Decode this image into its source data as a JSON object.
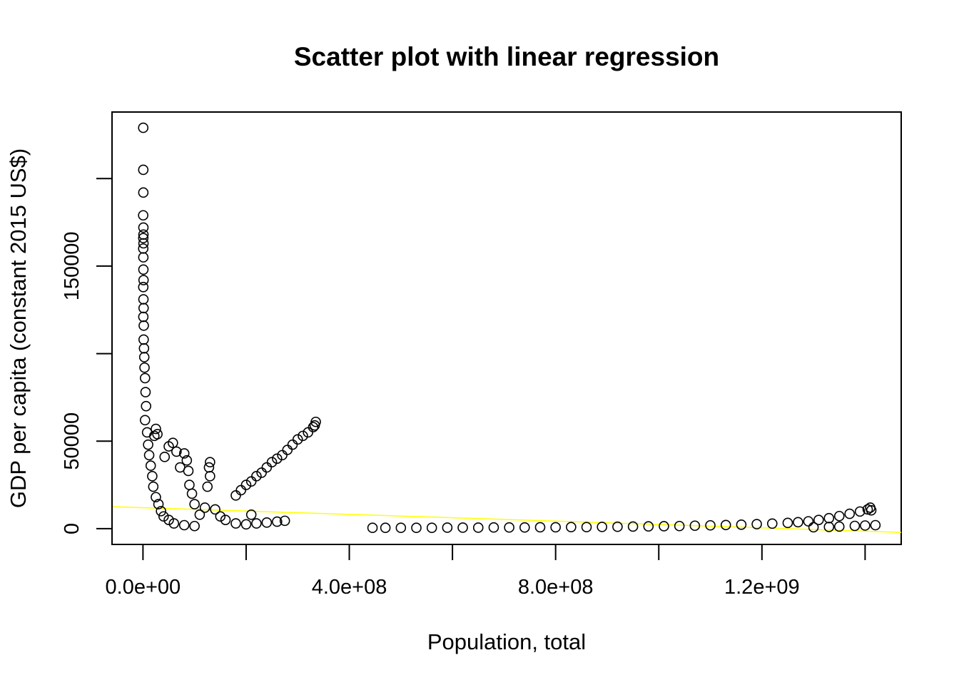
{
  "chart_data": {
    "type": "scatter",
    "title": "Scatter plot with linear regression",
    "xlabel": "Population, total",
    "ylabel": "GDP per capita (constant 2015 US$)",
    "xlim": [
      -60000000,
      1470000000
    ],
    "ylim": [
      -9000000,
      238000
    ],
    "y_display_min": -9000,
    "x_ticks": [
      0,
      200000000,
      400000000,
      600000000,
      800000000,
      1000000000,
      1200000000,
      1400000000
    ],
    "x_tick_labels": [
      {
        "value": 0,
        "label": "0.0e+00"
      },
      {
        "value": 400000000,
        "label": "4.0e+08"
      },
      {
        "value": 800000000,
        "label": "8.0e+08"
      },
      {
        "value": 1200000000,
        "label": "1.2e+09"
      }
    ],
    "y_ticks": [
      0,
      50000,
      100000,
      150000,
      200000
    ],
    "y_tick_labels": [
      {
        "value": 0,
        "label": "0"
      },
      {
        "value": 50000,
        "label": "50000"
      },
      {
        "value": 150000,
        "label": "150000"
      }
    ],
    "regression_line": {
      "color": "#ffff00",
      "intercept": 12000,
      "slope": -9.6e-06
    },
    "point_style": {
      "marker": "open-circle",
      "color": "#000000"
    },
    "series": [
      {
        "points": [
          [
            500000,
            229000
          ],
          [
            600000,
            205000
          ],
          [
            700000,
            192000
          ],
          [
            400000,
            179000
          ],
          [
            800000,
            172000
          ],
          [
            900000,
            168000
          ],
          [
            600000,
            166000
          ],
          [
            1000000,
            163000
          ],
          [
            500000,
            160000
          ],
          [
            700000,
            155000
          ],
          [
            800000,
            148000
          ],
          [
            1100000,
            142000
          ],
          [
            600000,
            138000
          ],
          [
            900000,
            131000
          ],
          [
            1200000,
            126000
          ],
          [
            700000,
            121000
          ],
          [
            1500000,
            116000
          ],
          [
            1300000,
            108000
          ],
          [
            2000000,
            103000
          ],
          [
            2500000,
            98000
          ],
          [
            3000000,
            92000
          ],
          [
            4000000,
            86000
          ],
          [
            5000000,
            78000
          ],
          [
            6000000,
            70000
          ],
          [
            4000000,
            62000
          ],
          [
            8000000,
            55000
          ],
          [
            10000000,
            48000
          ],
          [
            12000000,
            42000
          ],
          [
            15000000,
            36000
          ],
          [
            18000000,
            30000
          ],
          [
            20000000,
            24000
          ],
          [
            25000000,
            18000
          ],
          [
            30000000,
            14000
          ],
          [
            35000000,
            10000
          ],
          [
            40000000,
            7000
          ],
          [
            50000000,
            5000
          ],
          [
            60000000,
            3000
          ],
          [
            80000000,
            2000
          ],
          [
            100000000,
            1500
          ],
          [
            22000000,
            53000
          ],
          [
            25000000,
            57000
          ],
          [
            28000000,
            54000
          ],
          [
            42000000,
            41000
          ],
          [
            50000000,
            47000
          ],
          [
            58000000,
            49000
          ],
          [
            65000000,
            44000
          ],
          [
            72000000,
            35000
          ],
          [
            80000000,
            43000
          ],
          [
            85000000,
            39000
          ],
          [
            88000000,
            33000
          ],
          [
            90000000,
            25000
          ],
          [
            95000000,
            20000
          ],
          [
            100000000,
            14000
          ],
          [
            110000000,
            8000
          ],
          [
            120000000,
            12000
          ],
          [
            125000000,
            24000
          ],
          [
            130000000,
            30000
          ],
          [
            128000000,
            35000
          ],
          [
            130000000,
            38000
          ],
          [
            140000000,
            11000
          ],
          [
            150000000,
            7000
          ],
          [
            160000000,
            5000
          ],
          [
            180000000,
            3000
          ],
          [
            200000000,
            2500
          ],
          [
            220000000,
            3000
          ],
          [
            240000000,
            3500
          ],
          [
            260000000,
            4000
          ],
          [
            275000000,
            4500
          ],
          [
            210000000,
            8000
          ],
          [
            180000000,
            19000
          ],
          [
            190000000,
            22000
          ],
          [
            200000000,
            25000
          ],
          [
            210000000,
            27000
          ],
          [
            220000000,
            30000
          ],
          [
            230000000,
            32000
          ],
          [
            240000000,
            35000
          ],
          [
            250000000,
            38000
          ],
          [
            260000000,
            40000
          ],
          [
            270000000,
            42000
          ],
          [
            280000000,
            45000
          ],
          [
            290000000,
            48000
          ],
          [
            300000000,
            51000
          ],
          [
            310000000,
            53000
          ],
          [
            320000000,
            55000
          ],
          [
            330000000,
            58000
          ],
          [
            335000000,
            61000
          ],
          [
            333000000,
            59000
          ],
          [
            445000000,
            500
          ],
          [
            470000000,
            500
          ],
          [
            500000000,
            500
          ],
          [
            530000000,
            500
          ],
          [
            560000000,
            500
          ],
          [
            590000000,
            600
          ],
          [
            620000000,
            600
          ],
          [
            650000000,
            600
          ],
          [
            680000000,
            700
          ],
          [
            710000000,
            700
          ],
          [
            740000000,
            700
          ],
          [
            770000000,
            800
          ],
          [
            800000000,
            800
          ],
          [
            830000000,
            900
          ],
          [
            860000000,
            900
          ],
          [
            890000000,
            1000
          ],
          [
            920000000,
            1100
          ],
          [
            950000000,
            1200
          ],
          [
            980000000,
            1300
          ],
          [
            1010000000,
            1400
          ],
          [
            1040000000,
            1500
          ],
          [
            1070000000,
            1700
          ],
          [
            1100000000,
            1900
          ],
          [
            1130000000,
            2100
          ],
          [
            1160000000,
            2300
          ],
          [
            1190000000,
            2600
          ],
          [
            1220000000,
            2900
          ],
          [
            1250000000,
            3300
          ],
          [
            1270000000,
            3700
          ],
          [
            1290000000,
            4200
          ],
          [
            1310000000,
            5000
          ],
          [
            1330000000,
            6000
          ],
          [
            1350000000,
            7200
          ],
          [
            1370000000,
            8500
          ],
          [
            1390000000,
            9800
          ],
          [
            1405000000,
            11000
          ],
          [
            1410000000,
            12000
          ],
          [
            1412000000,
            10500
          ],
          [
            1420000000,
            2000
          ],
          [
            1400000000,
            1800
          ],
          [
            1380000000,
            1600
          ],
          [
            1350000000,
            1200
          ],
          [
            1330000000,
            1000
          ],
          [
            1300000000,
            800
          ]
        ]
      }
    ]
  }
}
